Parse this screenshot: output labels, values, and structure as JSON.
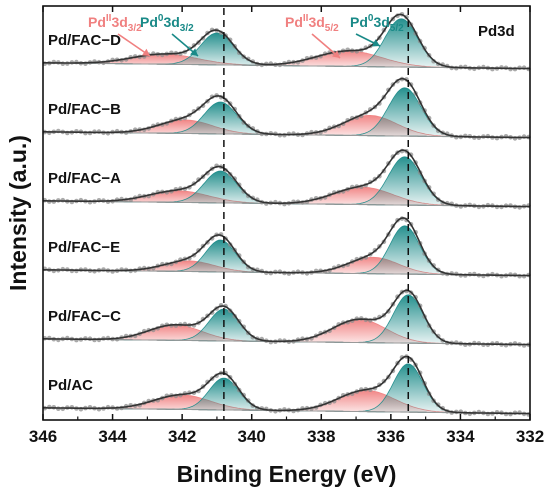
{
  "chart_data": {
    "type": "line",
    "panel_label": "Pd3d",
    "xlabel": "Binding Energy (eV)",
    "ylabel": "Intensity (a.u.)",
    "xlim": [
      346,
      332
    ],
    "x_ticks": [
      346,
      344,
      342,
      340,
      338,
      336,
      334,
      332
    ],
    "x_reversed": true,
    "y_ticks_shown": false,
    "reference_lines": [
      340.8,
      335.5
    ],
    "colors": {
      "pd2": "#f08080",
      "pd0": "#1a8a88",
      "data_points": "#8e8e8e",
      "envelope": "#333333"
    },
    "peak_labels": {
      "pd2_3d32": {
        "main": "Pd",
        "sup": "II",
        "level": "3d",
        "sub": "3/2"
      },
      "pd0_3d32": {
        "main": "Pd",
        "sup": "0",
        "level": "3d",
        "sub": "3/2"
      },
      "pd2_3d52": {
        "main": "Pd",
        "sup": "II",
        "level": "3d",
        "sub": "5/2"
      },
      "pd0_3d52": {
        "main": "Pd",
        "sup": "0",
        "level": "3d",
        "sub": "5/2"
      }
    },
    "series": [
      {
        "name": "Pd/FAC−D",
        "pd0_3d52": {
          "center": 335.7,
          "height": 1.0,
          "fwhm": 1.1
        },
        "pd2_3d52": {
          "center": 337.2,
          "height": 0.32,
          "fwhm": 2.2
        },
        "pd0_3d32": {
          "center": 341.0,
          "height": 0.66,
          "fwhm": 1.1
        },
        "pd2_3d32": {
          "center": 342.5,
          "height": 0.21,
          "fwhm": 2.2
        }
      },
      {
        "name": "Pd/FAC−B",
        "pd0_3d52": {
          "center": 335.6,
          "height": 1.0,
          "fwhm": 1.1
        },
        "pd2_3d52": {
          "center": 336.6,
          "height": 0.42,
          "fwhm": 1.8
        },
        "pd0_3d32": {
          "center": 340.9,
          "height": 0.66,
          "fwhm": 1.1
        },
        "pd2_3d32": {
          "center": 341.9,
          "height": 0.28,
          "fwhm": 1.8
        }
      },
      {
        "name": "Pd/FAC−A",
        "pd0_3d52": {
          "center": 335.6,
          "height": 1.0,
          "fwhm": 1.1
        },
        "pd2_3d52": {
          "center": 336.8,
          "height": 0.36,
          "fwhm": 2.0
        },
        "pd0_3d32": {
          "center": 340.9,
          "height": 0.66,
          "fwhm": 1.1
        },
        "pd2_3d32": {
          "center": 342.1,
          "height": 0.24,
          "fwhm": 2.0
        }
      },
      {
        "name": "Pd/FAC−E",
        "pd0_3d52": {
          "center": 335.6,
          "height": 1.0,
          "fwhm": 1.0
        },
        "pd2_3d52": {
          "center": 336.5,
          "height": 0.34,
          "fwhm": 1.7
        },
        "pd0_3d32": {
          "center": 340.9,
          "height": 0.66,
          "fwhm": 1.0
        },
        "pd2_3d32": {
          "center": 341.8,
          "height": 0.22,
          "fwhm": 1.7
        }
      },
      {
        "name": "Pd/FAC−C",
        "pd0_3d52": {
          "center": 335.5,
          "height": 1.0,
          "fwhm": 1.0
        },
        "pd2_3d52": {
          "center": 336.9,
          "height": 0.48,
          "fwhm": 1.8
        },
        "pd0_3d32": {
          "center": 340.8,
          "height": 0.66,
          "fwhm": 1.0
        },
        "pd2_3d32": {
          "center": 342.2,
          "height": 0.32,
          "fwhm": 1.8
        }
      },
      {
        "name": "Pd/AC",
        "pd0_3d52": {
          "center": 335.5,
          "height": 1.0,
          "fwhm": 1.0
        },
        "pd2_3d52": {
          "center": 336.7,
          "height": 0.44,
          "fwhm": 1.9
        },
        "pd0_3d32": {
          "center": 340.8,
          "height": 0.66,
          "fwhm": 1.0
        },
        "pd2_3d32": {
          "center": 342.0,
          "height": 0.3,
          "fwhm": 1.9
        }
      }
    ]
  }
}
